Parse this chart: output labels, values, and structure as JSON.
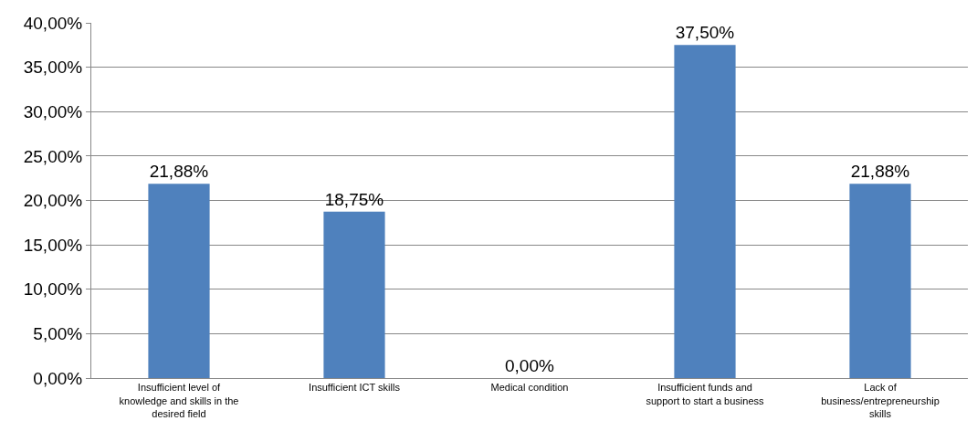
{
  "chart_data": {
    "type": "bar",
    "categories": [
      "Insufficient level of knowledge and skills in the desired field",
      "Insufficient ICT skills",
      "Medical condition",
      "Insufficient funds and support to start a business",
      "Lack of business/entrepreneurship skills"
    ],
    "values": [
      21.88,
      18.75,
      0,
      37.5,
      21.88
    ],
    "value_labels": [
      "21,88%",
      "18,75%",
      "0,00%",
      "37,50%",
      "21,88%"
    ],
    "color": "#4f81bd",
    "ylim": [
      0,
      40
    ],
    "yticks": [
      {
        "value": 0,
        "label": "0,00%"
      },
      {
        "value": 5,
        "label": "5,00%"
      },
      {
        "value": 10,
        "label": "10,00%"
      },
      {
        "value": 15,
        "label": "15,00%"
      },
      {
        "value": 20,
        "label": "20,00%"
      },
      {
        "value": 25,
        "label": "25,00%"
      },
      {
        "value": 30,
        "label": "30,00%"
      },
      {
        "value": 35,
        "label": "35,00%"
      },
      {
        "value": 40,
        "label": "40,00%"
      }
    ],
    "grid": "y",
    "legend": false
  }
}
